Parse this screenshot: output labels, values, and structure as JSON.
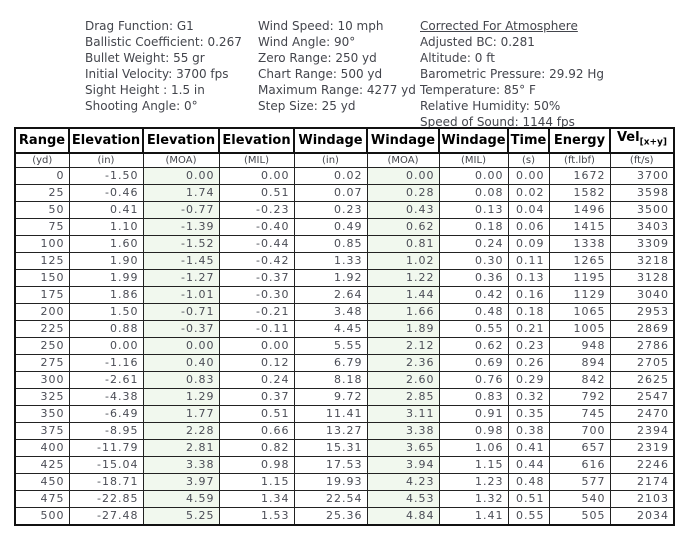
{
  "colors": {
    "tint_column_bg": "#f1f8ee",
    "border": "#111111",
    "header_text": "#000000",
    "body_text": "#4a4c55"
  },
  "parameters": {
    "load": {
      "lines": [
        "Drag Function: G1",
        "Ballistic Coefficient: 0.267",
        "Bullet Weight: 55 gr",
        "Initial Velocity: 3700 fps",
        "Sight Height : 1.5 in",
        "Shooting Angle: 0°"
      ]
    },
    "wind": {
      "lines": [
        "Wind Speed: 10 mph",
        "Wind Angle: 90°",
        "Zero Range: 250 yd",
        "Chart Range: 500 yd",
        "Maximum Range: 4277 yd",
        "Step Size: 25 yd"
      ]
    },
    "atmosphere": {
      "title": "Corrected For Atmosphere",
      "lines": [
        "Adjusted BC: 0.281",
        "Altitude: 0 ft",
        "Barometric Pressure: 29.92 Hg",
        "Temperature: 85° F",
        "Relative Humidity: 50%",
        "Speed of Sound: 1144 fps"
      ]
    }
  },
  "table": {
    "columns": [
      {
        "label": "Range",
        "unit": "(yd)"
      },
      {
        "label": "Elevation",
        "unit": "(in)"
      },
      {
        "label": "Elevation",
        "unit": "(MOA)"
      },
      {
        "label": "Elevation",
        "unit": "(MIL)"
      },
      {
        "label": "Windage",
        "unit": "(in)"
      },
      {
        "label": "Windage",
        "unit": "(MOA)"
      },
      {
        "label": "Windage",
        "unit": "(MIL)"
      },
      {
        "label": "Time",
        "unit": "(s)"
      },
      {
        "label": "Energy",
        "unit": "(ft.lbf)"
      },
      {
        "label": "Vel",
        "sub": "[x+y]",
        "unit": "(ft/s)"
      }
    ],
    "tint_column_indexes": [
      2,
      5
    ],
    "rows": [
      [
        "0",
        "-1.50",
        "0.00",
        "0.00",
        "0.02",
        "0.00",
        "0.00",
        "0.00",
        "1672",
        "3700"
      ],
      [
        "25",
        "-0.46",
        "1.74",
        "0.51",
        "0.07",
        "0.28",
        "0.08",
        "0.02",
        "1582",
        "3598"
      ],
      [
        "50",
        "0.41",
        "-0.77",
        "-0.23",
        "0.23",
        "0.43",
        "0.13",
        "0.04",
        "1496",
        "3500"
      ],
      [
        "75",
        "1.10",
        "-1.39",
        "-0.40",
        "0.49",
        "0.62",
        "0.18",
        "0.06",
        "1415",
        "3403"
      ],
      [
        "100",
        "1.60",
        "-1.52",
        "-0.44",
        "0.85",
        "0.81",
        "0.24",
        "0.09",
        "1338",
        "3309"
      ],
      [
        "125",
        "1.90",
        "-1.45",
        "-0.42",
        "1.33",
        "1.02",
        "0.30",
        "0.11",
        "1265",
        "3218"
      ],
      [
        "150",
        "1.99",
        "-1.27",
        "-0.37",
        "1.92",
        "1.22",
        "0.36",
        "0.13",
        "1195",
        "3128"
      ],
      [
        "175",
        "1.86",
        "-1.01",
        "-0.30",
        "2.64",
        "1.44",
        "0.42",
        "0.16",
        "1129",
        "3040"
      ],
      [
        "200",
        "1.50",
        "-0.71",
        "-0.21",
        "3.48",
        "1.66",
        "0.48",
        "0.18",
        "1065",
        "2953"
      ],
      [
        "225",
        "0.88",
        "-0.37",
        "-0.11",
        "4.45",
        "1.89",
        "0.55",
        "0.21",
        "1005",
        "2869"
      ],
      [
        "250",
        "0.00",
        "0.00",
        "0.00",
        "5.55",
        "2.12",
        "0.62",
        "0.23",
        "948",
        "2786"
      ],
      [
        "275",
        "-1.16",
        "0.40",
        "0.12",
        "6.79",
        "2.36",
        "0.69",
        "0.26",
        "894",
        "2705"
      ],
      [
        "300",
        "-2.61",
        "0.83",
        "0.24",
        "8.18",
        "2.60",
        "0.76",
        "0.29",
        "842",
        "2625"
      ],
      [
        "325",
        "-4.38",
        "1.29",
        "0.37",
        "9.72",
        "2.85",
        "0.83",
        "0.32",
        "792",
        "2547"
      ],
      [
        "350",
        "-6.49",
        "1.77",
        "0.51",
        "11.41",
        "3.11",
        "0.91",
        "0.35",
        "745",
        "2470"
      ],
      [
        "375",
        "-8.95",
        "2.28",
        "0.66",
        "13.27",
        "3.38",
        "0.98",
        "0.38",
        "700",
        "2394"
      ],
      [
        "400",
        "-11.79",
        "2.81",
        "0.82",
        "15.31",
        "3.65",
        "1.06",
        "0.41",
        "657",
        "2319"
      ],
      [
        "425",
        "-15.04",
        "3.38",
        "0.98",
        "17.53",
        "3.94",
        "1.15",
        "0.44",
        "616",
        "2246"
      ],
      [
        "450",
        "-18.71",
        "3.97",
        "1.15",
        "19.93",
        "4.23",
        "1.23",
        "0.48",
        "577",
        "2174"
      ],
      [
        "475",
        "-22.85",
        "4.59",
        "1.34",
        "22.54",
        "4.53",
        "1.32",
        "0.51",
        "540",
        "2103"
      ],
      [
        "500",
        "-27.48",
        "5.25",
        "1.53",
        "25.36",
        "4.84",
        "1.41",
        "0.55",
        "505",
        "2034"
      ]
    ]
  }
}
